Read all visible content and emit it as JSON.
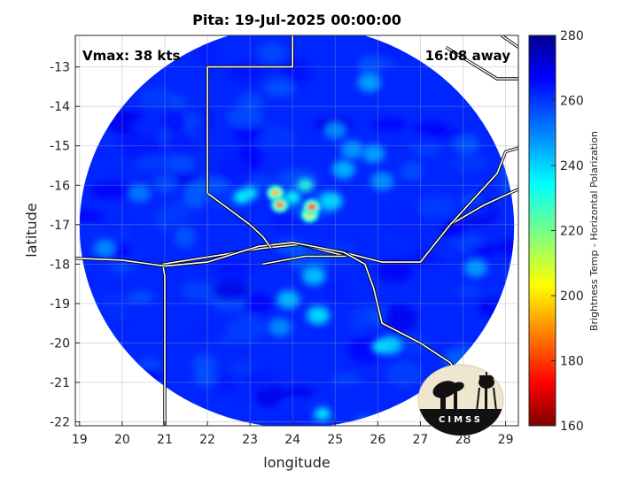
{
  "chart_data": {
    "type": "heatmap",
    "title": "Pita: 19-Jul-2025 00:00:00",
    "xlabel": "longitude",
    "ylabel": "latitude",
    "xlim": [
      18.9,
      29.3
    ],
    "ylim": [
      -22.1,
      -12.2
    ],
    "x_ticks": [
      19,
      20,
      21,
      22,
      23,
      24,
      25,
      26,
      27,
      28,
      29
    ],
    "y_ticks": [
      -13,
      -14,
      -15,
      -16,
      -17,
      -18,
      -19,
      -20,
      -21,
      -22
    ],
    "grid": true,
    "annotations": {
      "vmax": "Vmax: 38 kts",
      "distance": "16:08 away"
    },
    "colorbar": {
      "label": "Brightness Temp - Horizontal Polarization",
      "range": [
        160,
        280
      ],
      "ticks": [
        160,
        180,
        200,
        220,
        240,
        260,
        280
      ],
      "colormap": "jet"
    },
    "swath": {
      "center": [
        24.1,
        -17.05
      ],
      "radius_deg": 5.1,
      "background_value": 262
    },
    "cold_features": [
      {
        "lon": 23.7,
        "lat": -16.5,
        "value": 188
      },
      {
        "lon": 23.6,
        "lat": -16.2,
        "value": 195
      },
      {
        "lon": 24.45,
        "lat": -16.55,
        "value": 182
      },
      {
        "lon": 24.4,
        "lat": -16.75,
        "value": 200
      },
      {
        "lon": 24.3,
        "lat": -16.0,
        "value": 230
      },
      {
        "lon": 24.9,
        "lat": -16.4,
        "value": 240
      },
      {
        "lon": 25.2,
        "lat": -15.6,
        "value": 245
      },
      {
        "lon": 25.4,
        "lat": -15.1,
        "value": 248
      },
      {
        "lon": 25.9,
        "lat": -15.2,
        "value": 247
      },
      {
        "lon": 26.1,
        "lat": -15.9,
        "value": 249
      },
      {
        "lon": 23.0,
        "lat": -16.2,
        "value": 238
      },
      {
        "lon": 22.8,
        "lat": -16.3,
        "value": 236
      },
      {
        "lon": 24.0,
        "lat": -16.3,
        "value": 234
      },
      {
        "lon": 26.05,
        "lat": -20.1,
        "value": 238
      },
      {
        "lon": 26.3,
        "lat": -20.05,
        "value": 242
      },
      {
        "lon": 24.6,
        "lat": -19.3,
        "value": 240
      },
      {
        "lon": 23.9,
        "lat": -18.9,
        "value": 244
      },
      {
        "lon": 24.5,
        "lat": -18.3,
        "value": 243
      },
      {
        "lon": 24.7,
        "lat": -21.8,
        "value": 238
      },
      {
        "lon": 28.3,
        "lat": -18.1,
        "value": 248
      },
      {
        "lon": 25.8,
        "lat": -13.4,
        "value": 247
      },
      {
        "lon": 25.0,
        "lat": -14.6,
        "value": 250
      },
      {
        "lon": 23.7,
        "lat": -19.6,
        "value": 250
      },
      {
        "lon": 19.6,
        "lat": -17.6,
        "value": 250
      },
      {
        "lon": 20.4,
        "lat": -16.2,
        "value": 252
      }
    ],
    "borders": [
      [
        [
          21.0,
          -22.1
        ],
        [
          21.0,
          -18.3
        ],
        [
          20.95,
          -18.0
        ],
        [
          23.3,
          -17.6
        ],
        [
          24.2,
          -17.5
        ],
        [
          25.25,
          -17.8
        ]
      ],
      [
        [
          18.9,
          -17.85
        ],
        [
          20.0,
          -17.9
        ],
        [
          21.0,
          -18.05
        ],
        [
          22.0,
          -17.95
        ],
        [
          23.2,
          -17.55
        ],
        [
          24.0,
          -17.45
        ],
        [
          25.2,
          -17.7
        ]
      ],
      [
        [
          25.2,
          -17.7
        ],
        [
          26.1,
          -17.95
        ],
        [
          27.0,
          -17.95
        ],
        [
          27.7,
          -17.0
        ],
        [
          28.5,
          -16.5
        ],
        [
          29.3,
          -16.1
        ]
      ],
      [
        [
          27.7,
          -17.0
        ],
        [
          28.8,
          -15.7
        ],
        [
          29.0,
          -15.15
        ],
        [
          29.3,
          -15.05
        ]
      ],
      [
        [
          25.2,
          -17.7
        ],
        [
          25.7,
          -18.0
        ],
        [
          25.9,
          -18.6
        ],
        [
          26.1,
          -19.5
        ],
        [
          27.0,
          -20.0
        ],
        [
          27.7,
          -20.5
        ],
        [
          28.0,
          -21.0
        ]
      ],
      [
        [
          23.3,
          -18.0
        ],
        [
          23.8,
          -17.9
        ],
        [
          24.3,
          -17.8
        ],
        [
          25.0,
          -17.8
        ],
        [
          25.25,
          -17.8
        ]
      ],
      [
        [
          22.0,
          -16.2
        ],
        [
          22.5,
          -16.6
        ],
        [
          23.0,
          -17.0
        ],
        [
          23.3,
          -17.3
        ],
        [
          23.5,
          -17.6
        ]
      ],
      [
        [
          22.0,
          -16.2
        ],
        [
          22.0,
          -13.0
        ],
        [
          23.0,
          -13.0
        ],
        [
          24.0,
          -13.0
        ],
        [
          24.0,
          -12.2
        ]
      ],
      [
        [
          28.9,
          -12.2
        ],
        [
          29.3,
          -12.5
        ]
      ],
      [
        [
          27.6,
          -12.5
        ],
        [
          28.2,
          -12.9
        ],
        [
          28.8,
          -13.3
        ],
        [
          29.3,
          -13.3
        ]
      ]
    ]
  },
  "logo": {
    "text": "CIMSS"
  }
}
